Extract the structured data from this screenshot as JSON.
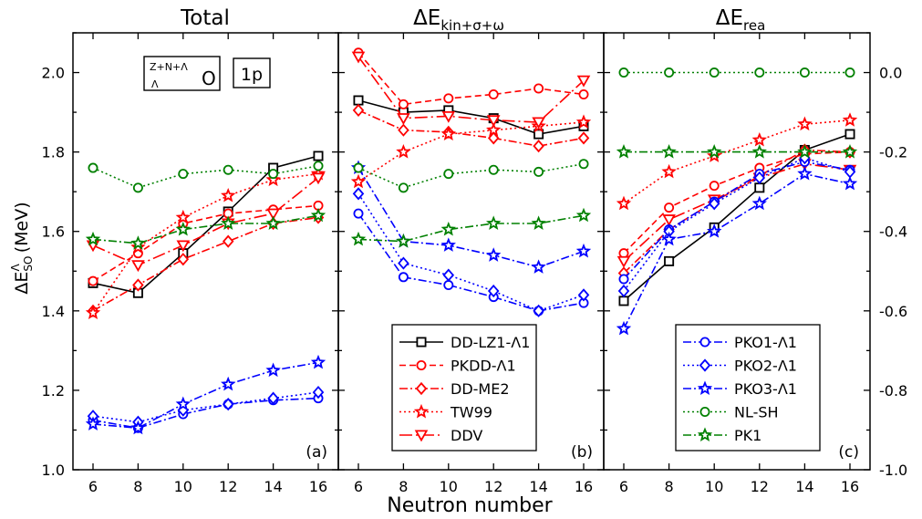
{
  "figure": {
    "xlabel": "Neutron number",
    "ylabel_main": "ΔE",
    "ylabel_sub": "SO",
    "ylabel_sup": "Λ",
    "ylabel_unit": " (MeV)",
    "inset_nucleus_pre": "Z+N+Λ",
    "inset_nucleus_sub": "Λ",
    "inset_nucleus_elem": "O",
    "inset_state": "1p"
  },
  "chart_data": [
    {
      "type": "line",
      "panel_label": "(a)",
      "title": "Total",
      "x": [
        6,
        8,
        10,
        12,
        14,
        16
      ],
      "x_ticks": [
        "6",
        "8",
        "10",
        "12",
        "14",
        "16"
      ],
      "ylim": [
        1.0,
        2.1
      ],
      "y_ticks": [
        "1.0",
        "1.2",
        "1.4",
        "1.6",
        "1.8",
        "2.0"
      ],
      "series": [
        {
          "name": "DD-LZ1-Λ1",
          "color": "#000000",
          "dash": "solid",
          "marker": "square",
          "values": [
            1.47,
            1.445,
            1.545,
            1.65,
            1.76,
            1.79
          ]
        },
        {
          "name": "PKDD-Λ1",
          "color": "#ff0000",
          "dash": "dash",
          "marker": "circle",
          "values": [
            1.475,
            1.545,
            1.62,
            1.645,
            1.655,
            1.665
          ]
        },
        {
          "name": "DD-ME2",
          "color": "#ff0000",
          "dash": "dashdot",
          "marker": "diamond",
          "values": [
            1.4,
            1.465,
            1.53,
            1.575,
            1.62,
            1.635
          ]
        },
        {
          "name": "TW99",
          "color": "#ff0000",
          "dash": "dot",
          "marker": "star",
          "values": [
            1.395,
            1.56,
            1.635,
            1.69,
            1.73,
            1.745
          ]
        },
        {
          "name": "DDV",
          "color": "#ff0000",
          "dash": "dashdotlong",
          "marker": "triangle-down",
          "values": [
            1.565,
            1.515,
            1.565,
            1.62,
            1.645,
            1.735
          ]
        },
        {
          "name": "PKO1-Λ1",
          "color": "#0000ff",
          "dash": "dashdot",
          "marker": "circle",
          "values": [
            1.125,
            1.105,
            1.14,
            1.165,
            1.175,
            1.18
          ]
        },
        {
          "name": "PKO2-Λ1",
          "color": "#0000ff",
          "dash": "dot",
          "marker": "diamond",
          "values": [
            1.135,
            1.12,
            1.15,
            1.165,
            1.18,
            1.195
          ]
        },
        {
          "name": "PKO3-Λ1",
          "color": "#0000ff",
          "dash": "dashdot",
          "marker": "star",
          "values": [
            1.115,
            1.105,
            1.165,
            1.215,
            1.25,
            1.27
          ]
        },
        {
          "name": "NL-SH",
          "color": "#008000",
          "dash": "dot",
          "marker": "circle",
          "values": [
            1.76,
            1.71,
            1.745,
            1.755,
            1.745,
            1.765
          ]
        },
        {
          "name": "PK1",
          "color": "#008000",
          "dash": "dashdot",
          "marker": "star",
          "values": [
            1.58,
            1.57,
            1.605,
            1.62,
            1.62,
            1.64
          ]
        }
      ]
    },
    {
      "type": "line",
      "panel_label": "(b)",
      "title_main": "ΔE",
      "title_sub": "kin+σ+ω",
      "x": [
        6,
        8,
        10,
        12,
        14,
        16
      ],
      "x_ticks": [
        "6",
        "8",
        "10",
        "12",
        "14",
        "16"
      ],
      "ylim": [
        1.0,
        2.1
      ],
      "series": [
        {
          "name": "DD-LZ1-Λ1",
          "color": "#000000",
          "dash": "solid",
          "marker": "square",
          "values": [
            1.93,
            1.9,
            1.905,
            1.885,
            1.845,
            1.865
          ]
        },
        {
          "name": "PKDD-Λ1",
          "color": "#ff0000",
          "dash": "dash",
          "marker": "circle",
          "values": [
            2.05,
            1.92,
            1.935,
            1.945,
            1.96,
            1.945
          ]
        },
        {
          "name": "DD-ME2",
          "color": "#ff0000",
          "dash": "dashdot",
          "marker": "diamond",
          "values": [
            1.905,
            1.855,
            1.85,
            1.835,
            1.815,
            1.835
          ]
        },
        {
          "name": "TW99",
          "color": "#ff0000",
          "dash": "dot",
          "marker": "star",
          "values": [
            1.725,
            1.8,
            1.845,
            1.855,
            1.865,
            1.875
          ]
        },
        {
          "name": "DDV",
          "color": "#ff0000",
          "dash": "dashdotlong",
          "marker": "triangle-down",
          "values": [
            2.04,
            1.885,
            1.89,
            1.88,
            1.875,
            1.98
          ]
        },
        {
          "name": "PKO1-Λ1",
          "color": "#0000ff",
          "dash": "dashdot",
          "marker": "circle",
          "values": [
            1.645,
            1.485,
            1.465,
            1.435,
            1.4,
            1.42
          ]
        },
        {
          "name": "PKO2-Λ1",
          "color": "#0000ff",
          "dash": "dot",
          "marker": "diamond",
          "values": [
            1.695,
            1.52,
            1.49,
            1.45,
            1.4,
            1.44
          ]
        },
        {
          "name": "PKO3-Λ1",
          "color": "#0000ff",
          "dash": "dashdot",
          "marker": "star",
          "values": [
            1.76,
            1.575,
            1.565,
            1.54,
            1.51,
            1.55
          ]
        },
        {
          "name": "NL-SH",
          "color": "#008000",
          "dash": "dot",
          "marker": "circle",
          "values": [
            1.76,
            1.71,
            1.745,
            1.755,
            1.75,
            1.77
          ]
        },
        {
          "name": "PK1",
          "color": "#008000",
          "dash": "dashdot",
          "marker": "star",
          "values": [
            1.58,
            1.575,
            1.605,
            1.62,
            1.62,
            1.64
          ]
        }
      ]
    },
    {
      "type": "line",
      "panel_label": "(c)",
      "title_main": "ΔE",
      "title_sub": "rea",
      "x": [
        6,
        8,
        10,
        12,
        14,
        16
      ],
      "x_ticks": [
        "6",
        "8",
        "10",
        "12",
        "14",
        "16"
      ],
      "ylim": [
        -1.0,
        0.1
      ],
      "y_ticks": [
        "-1.0",
        "-0.8",
        "-0.6",
        "-0.4",
        "-0.2",
        "0.0"
      ],
      "series": [
        {
          "name": "DD-LZ1-Λ1",
          "color": "#000000",
          "dash": "solid",
          "marker": "square",
          "values": [
            -0.575,
            -0.475,
            -0.39,
            -0.29,
            -0.195,
            -0.155
          ]
        },
        {
          "name": "PKDD-Λ1",
          "color": "#ff0000",
          "dash": "dash",
          "marker": "circle",
          "values": [
            -0.455,
            -0.34,
            -0.285,
            -0.24,
            -0.205,
            -0.2
          ]
        },
        {
          "name": "DD-ME2",
          "color": "#ff0000",
          "dash": "dashdot",
          "marker": "diamond",
          "values": [
            -0.505,
            -0.395,
            -0.325,
            -0.26,
            -0.195,
            -0.2
          ]
        },
        {
          "name": "TW99",
          "color": "#ff0000",
          "dash": "dot",
          "marker": "star",
          "values": [
            -0.33,
            -0.25,
            -0.21,
            -0.17,
            -0.13,
            -0.12
          ]
        },
        {
          "name": "DDV",
          "color": "#ff0000",
          "dash": "dashdotlong",
          "marker": "triangle-down",
          "values": [
            -0.475,
            -0.37,
            -0.32,
            -0.265,
            -0.23,
            -0.245
          ]
        },
        {
          "name": "PKO1-Λ1",
          "color": "#0000ff",
          "dash": "dashdot",
          "marker": "circle",
          "values": [
            -0.52,
            -0.395,
            -0.325,
            -0.255,
            -0.225,
            -0.245
          ]
        },
        {
          "name": "PKO2-Λ1",
          "color": "#0000ff",
          "dash": "dot",
          "marker": "diamond",
          "values": [
            -0.55,
            -0.4,
            -0.33,
            -0.265,
            -0.215,
            -0.25
          ]
        },
        {
          "name": "PKO3-Λ1",
          "color": "#0000ff",
          "dash": "dashdot",
          "marker": "star",
          "values": [
            -0.645,
            -0.42,
            -0.4,
            -0.33,
            -0.255,
            -0.28
          ]
        },
        {
          "name": "NL-SH",
          "color": "#008000",
          "dash": "dot",
          "marker": "circle",
          "values": [
            0.0,
            0.0,
            0.0,
            0.0,
            0.0,
            0.0
          ]
        },
        {
          "name": "PK1",
          "color": "#008000",
          "dash": "dashdot",
          "marker": "star",
          "values": [
            -0.2,
            -0.2,
            -0.2,
            -0.2,
            -0.2,
            -0.2
          ]
        }
      ]
    }
  ],
  "legends": {
    "panel_b": [
      "DD-LZ1-Λ1",
      "PKDD-Λ1",
      "DD-ME2",
      "TW99",
      "DDV"
    ],
    "panel_c": [
      "PKO1-Λ1",
      "PKO2-Λ1",
      "PKO3-Λ1",
      "NL-SH",
      "PK1"
    ]
  }
}
